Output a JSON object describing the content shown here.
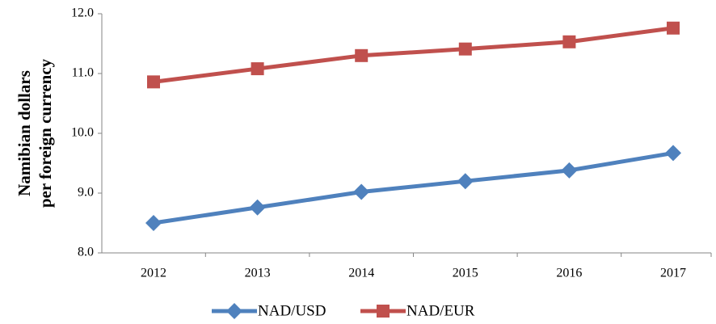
{
  "chart_data": {
    "type": "line",
    "y_label": [
      "Namibian dollars",
      "per foreign currency"
    ],
    "categories": [
      "2012",
      "2013",
      "2014",
      "2015",
      "2016",
      "2017"
    ],
    "series": [
      {
        "name": "NAD/USD",
        "color": "#4f81bd",
        "marker": "diamond",
        "values": [
          8.5,
          8.76,
          9.02,
          9.2,
          9.38,
          9.67
        ]
      },
      {
        "name": "NAD/EUR",
        "color": "#c0504d",
        "marker": "square",
        "values": [
          10.86,
          11.08,
          11.3,
          11.41,
          11.53,
          11.76
        ]
      }
    ],
    "ylim": [
      8,
      12
    ],
    "yticks": [
      {
        "value": 8,
        "label": "8.0"
      },
      {
        "value": 9,
        "label": "9.0"
      },
      {
        "value": 10,
        "label": "10.0"
      },
      {
        "value": 11,
        "label": "11.0"
      },
      {
        "value": 12,
        "label": "12.0"
      }
    ],
    "legend": "bottom"
  }
}
